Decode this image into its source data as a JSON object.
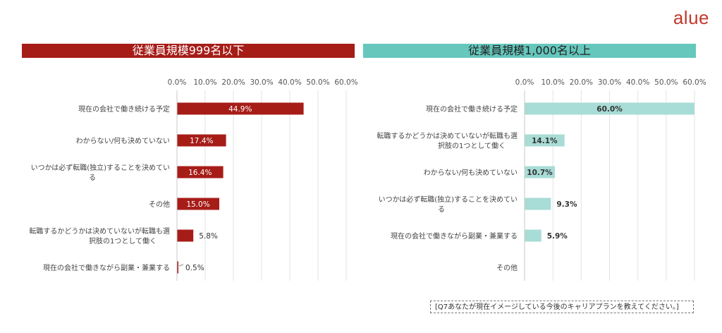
{
  "brand": {
    "logo_text": "alue"
  },
  "note": "[Q7あなたが現在イメージしている今後のキャリアプランを教えてください。]",
  "colors": {
    "left_bar": "#a61d18",
    "right_bar": "#a8dcd6",
    "right_header": "#66c7bd"
  },
  "chart_data": [
    {
      "type": "bar",
      "orientation": "horizontal",
      "title": "従業員規模999名以下",
      "categories": [
        "現在の会社で働き続ける予定",
        "わからない/何も決めていない",
        "いつかは必ず転職(独立)することを決めている",
        "その他",
        "転職するかどうかは決めていないが転職も選択肢の1つとして働く",
        "現在の会社で働きながら副業・兼業する"
      ],
      "category_lines": [
        [
          "現在の会社で働き続ける予定"
        ],
        [
          "わからない/何も決めていない"
        ],
        [
          "いつかは必ず転職(独立)することを決めてい",
          "る"
        ],
        [
          "その他"
        ],
        [
          "転職するかどうかは決めていないが転職も選",
          "択肢の1つとして働く"
        ],
        [
          "現在の会社で働きながら副業・兼業する"
        ]
      ],
      "values": [
        44.9,
        17.4,
        16.4,
        15.0,
        5.8,
        0.5
      ],
      "value_labels": [
        "44.9%",
        "17.4%",
        "16.4%",
        "15.0%",
        "5.8%",
        "0.5%"
      ],
      "xlim": [
        0,
        60
      ],
      "ticks": [
        "0.0%",
        "10.0%",
        "20.0%",
        "30.0%",
        "40.0%",
        "50.0%",
        "60.0%"
      ],
      "grid": true
    },
    {
      "type": "bar",
      "orientation": "horizontal",
      "title": "従業員規模1,000名以上",
      "categories": [
        "現在の会社で働き続ける予定",
        "転職するかどうかは決めていないが転職も選択肢の1つとして働く",
        "わからない/何も決めていない",
        "いつかは必ず転職(独立)することを決めている",
        "現在の会社で働きながら副業・兼業する",
        "その他"
      ],
      "category_lines": [
        [
          "現在の会社で働き続ける予定"
        ],
        [
          "転職するかどうかは決めていないが転職も選",
          "択肢の1つとして働く"
        ],
        [
          "わからない/何も決めていない"
        ],
        [
          "いつかは必ず転職(独立)することを決めてい",
          "る"
        ],
        [
          "現在の会社で働きながら副業・兼業する"
        ],
        [
          "その他"
        ]
      ],
      "values": [
        60.0,
        14.1,
        10.7,
        9.3,
        5.9,
        0
      ],
      "value_labels": [
        "60.0%",
        "14.1%",
        "10.7%",
        "9.3%",
        "5.9%",
        ""
      ],
      "xlim": [
        0,
        60
      ],
      "ticks": [
        "0.0%",
        "10.0%",
        "20.0%",
        "30.0%",
        "40.0%",
        "50.0%",
        "60.0%"
      ],
      "grid": true
    }
  ]
}
